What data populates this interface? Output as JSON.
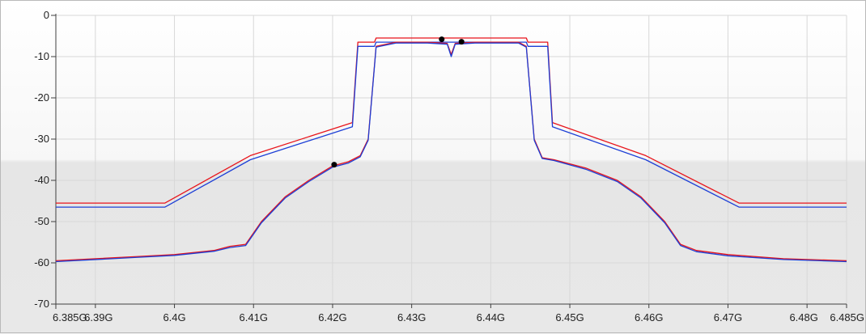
{
  "chart_data": {
    "type": "line",
    "title": "",
    "xlabel": "",
    "ylabel": "",
    "xlim": [
      6.385,
      6.485
    ],
    "ylim": [
      -70,
      0
    ],
    "grid": true,
    "legend": "none",
    "x_ticks": [
      {
        "value": 6.385,
        "label": "6.385G"
      },
      {
        "value": 6.39,
        "label": "6.39G"
      },
      {
        "value": 6.4,
        "label": "6.4G"
      },
      {
        "value": 6.41,
        "label": "6.41G"
      },
      {
        "value": 6.42,
        "label": "6.42G"
      },
      {
        "value": 6.43,
        "label": "6.43G"
      },
      {
        "value": 6.44,
        "label": "6.44G"
      },
      {
        "value": 6.45,
        "label": "6.45G"
      },
      {
        "value": 6.46,
        "label": "6.46G"
      },
      {
        "value": 6.47,
        "label": "6.47G"
      },
      {
        "value": 6.48,
        "label": "6.48G"
      },
      {
        "value": 6.485,
        "label": "6.485G"
      }
    ],
    "y_ticks": [
      {
        "value": 0,
        "label": "0"
      },
      {
        "value": -10,
        "label": "-10"
      },
      {
        "value": -20,
        "label": "-20"
      },
      {
        "value": -30,
        "label": "-30"
      },
      {
        "value": -40,
        "label": "-40"
      },
      {
        "value": -50,
        "label": "-50"
      },
      {
        "value": -60,
        "label": "-60"
      },
      {
        "value": -70,
        "label": "-70"
      }
    ],
    "colors": {
      "red": "#e8141b",
      "blue": "#1d3fd6",
      "grid": "#d8d8d8",
      "marker": "#000000"
    },
    "series": [
      {
        "color": "#e8141b",
        "x": [
          6.385,
          6.3988,
          6.4096,
          6.4225,
          6.4232,
          6.4233,
          6.4253,
          6.4255,
          6.4445,
          6.4447,
          6.4471,
          6.4472,
          6.4478,
          6.4596,
          6.4714,
          6.485
        ],
        "y": [
          -45.5,
          -45.5,
          -34,
          -26,
          -6.5,
          -6.5,
          -6.5,
          -5.5,
          -5.5,
          -6.5,
          -6.5,
          -6.5,
          -26,
          -34,
          -45.5,
          -45.5
        ]
      },
      {
        "color": "#1d3fd6",
        "x": [
          6.385,
          6.3988,
          6.4096,
          6.4225,
          6.4232,
          6.4233,
          6.4253,
          6.4255,
          6.4445,
          6.4447,
          6.4471,
          6.4472,
          6.4478,
          6.4596,
          6.4714,
          6.485
        ],
        "y": [
          -46.5,
          -46.5,
          -35,
          -27,
          -7.5,
          -7.5,
          -7.5,
          -6.5,
          -6.5,
          -7.5,
          -7.5,
          -7.5,
          -27,
          -35,
          -46.5,
          -46.5
        ]
      },
      {
        "color": "#e8141b",
        "x": [
          6.385,
          6.395,
          6.4,
          6.405,
          6.407,
          6.409,
          6.411,
          6.414,
          6.417,
          6.42,
          6.422,
          6.4235,
          6.4245,
          6.4255,
          6.428,
          6.432,
          6.4345,
          6.435,
          6.4355,
          6.438,
          6.4435,
          6.4445,
          6.4455,
          6.4465,
          6.448,
          6.452,
          6.456,
          6.459,
          6.462,
          6.464,
          6.466,
          6.47,
          6.477,
          6.485
        ],
        "y": [
          -59.5,
          -58.5,
          -58,
          -57,
          -56,
          -55.5,
          -50,
          -44,
          -40,
          -36.5,
          -35.5,
          -34,
          -30,
          -7.5,
          -6.5,
          -6.5,
          -6.8,
          -9.5,
          -6.8,
          -6.5,
          -6.5,
          -7.5,
          -30,
          -34.5,
          -35,
          -37,
          -40,
          -44,
          -50,
          -55.5,
          -57,
          -58,
          -59,
          -59.5
        ]
      },
      {
        "color": "#1d3fd6",
        "x": [
          6.385,
          6.395,
          6.4,
          6.405,
          6.407,
          6.409,
          6.411,
          6.414,
          6.417,
          6.42,
          6.422,
          6.4235,
          6.4245,
          6.4255,
          6.428,
          6.432,
          6.4345,
          6.435,
          6.4355,
          6.438,
          6.4435,
          6.4445,
          6.4455,
          6.4465,
          6.448,
          6.452,
          6.456,
          6.459,
          6.462,
          6.464,
          6.466,
          6.47,
          6.477,
          6.485
        ],
        "y": [
          -59.7,
          -58.7,
          -58.2,
          -57.2,
          -56.3,
          -55.8,
          -50.3,
          -44.3,
          -40.3,
          -36.8,
          -35.8,
          -34.3,
          -30.3,
          -7.7,
          -6.7,
          -6.7,
          -7.0,
          -10.0,
          -7.0,
          -6.7,
          -6.7,
          -7.7,
          -30.3,
          -34.7,
          -35.2,
          -37.3,
          -40.3,
          -44.3,
          -50.3,
          -55.8,
          -57.3,
          -58.3,
          -59.2,
          -59.7
        ]
      }
    ],
    "markers": [
      {
        "x": 6.4202,
        "y": -36.2
      },
      {
        "x": 6.4338,
        "y": -5.8
      },
      {
        "x": 6.4363,
        "y": -6.4
      }
    ]
  }
}
